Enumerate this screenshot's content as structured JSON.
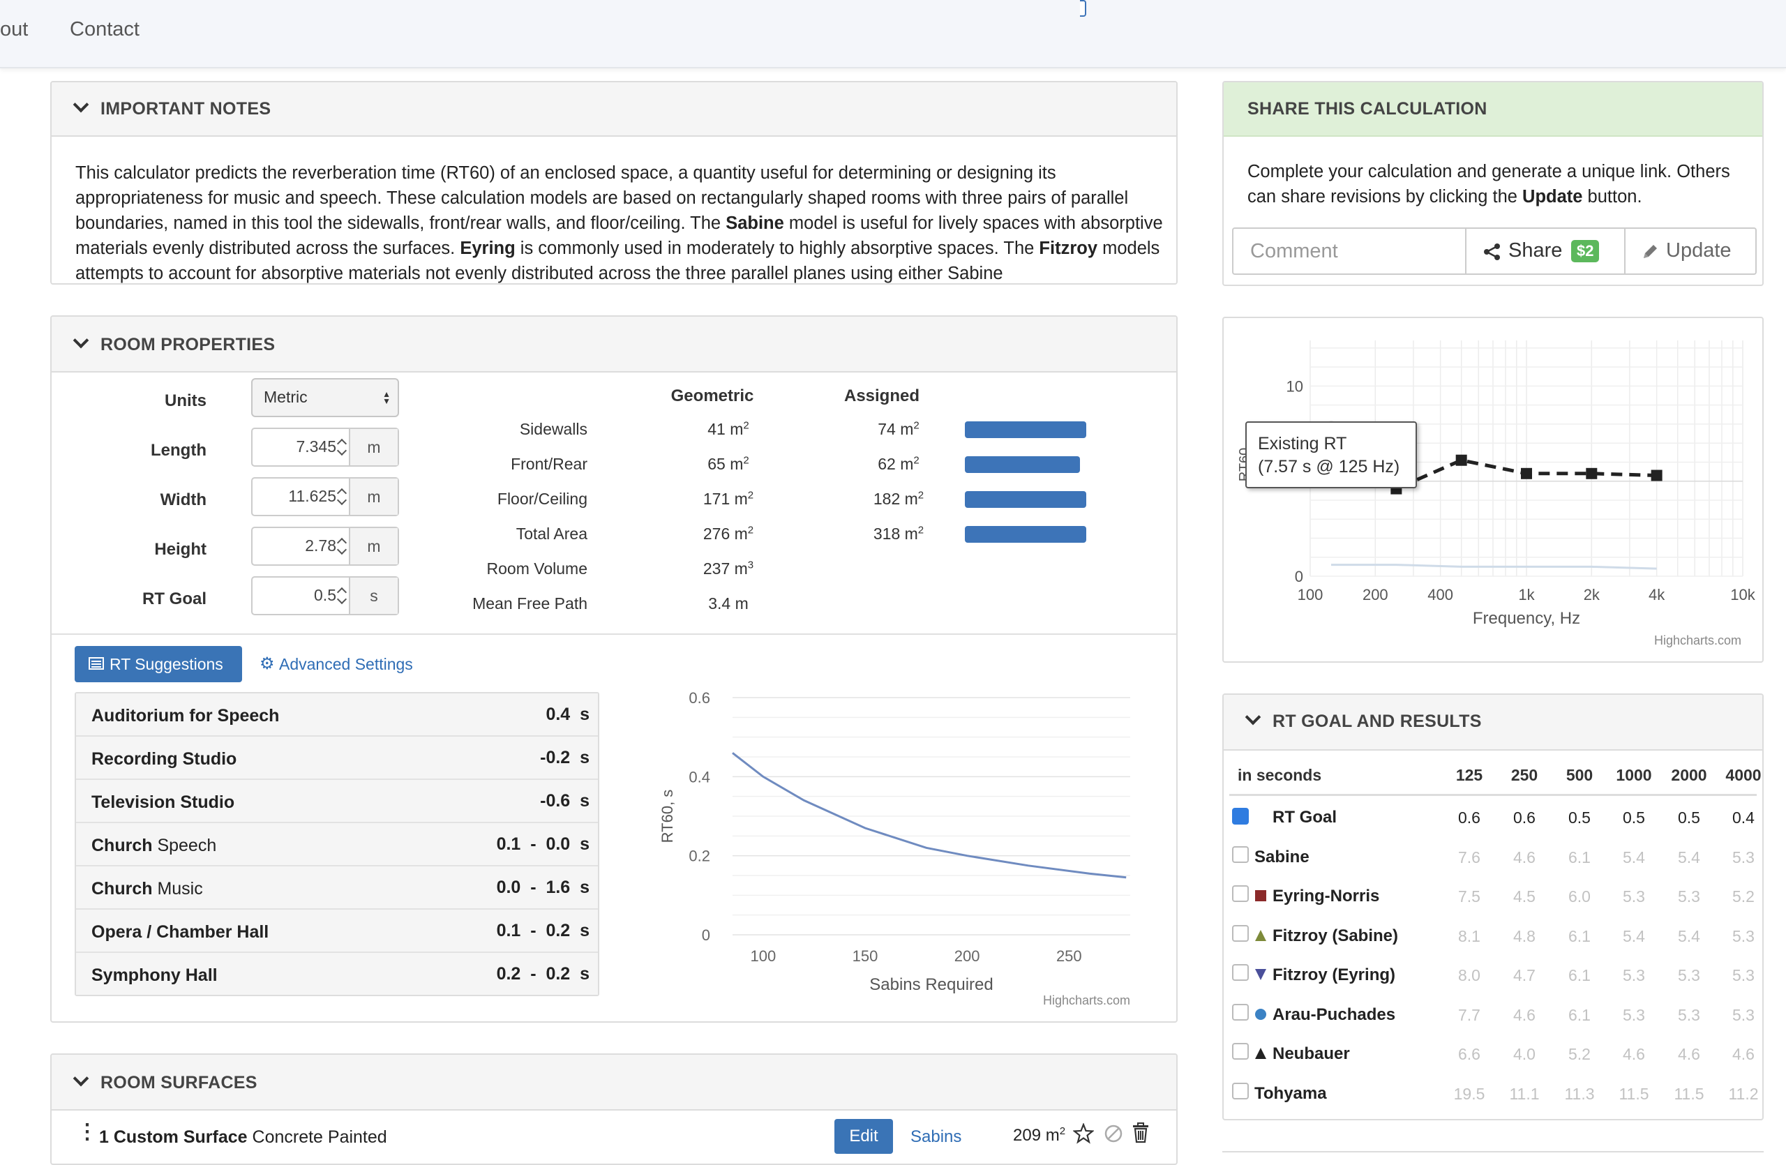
{
  "nav": {
    "about": "out",
    "contact": "Contact"
  },
  "notes": {
    "title": "IMPORTANT NOTES",
    "p1": "This calculator predicts the reverberation time (RT60) of an enclosed space, a quantity useful for determining or designing its appropriateness for music and speech. These calculation models are based on rectangularly shaped rooms with three pairs of parallel boundaries, named in this tool the sidewalls, front/rear walls, and floor/ceiling. The ",
    "b1": "Sabine",
    "p2": " model is useful for lively spaces with absorptive materials evenly distributed across the surfaces. ",
    "b2": "Eyring",
    "p3": " is commonly used in moderately to highly absorptive spaces. The ",
    "b3": "Fitzroy",
    "p4": " models attempts to account for absorptive materials not evenly distributed across the three parallel planes using either Sabine"
  },
  "share": {
    "title": "SHARE THIS CALCULATION",
    "text1": "Complete your calculation and generate a unique link. Others can share revisions by clicking the ",
    "text_bold": "Update",
    "text2": " button.",
    "comment_placeholder": "Comment",
    "share_label": "Share",
    "price": "$2",
    "update_label": "Update"
  },
  "room": {
    "title": "ROOM PROPERTIES",
    "units_label": "Units",
    "units_value": "Metric",
    "length_label": "Length",
    "length_value": "7.345",
    "length_unit": "m",
    "width_label": "Width",
    "width_value": "11.625",
    "width_unit": "m",
    "height_label": "Height",
    "height_value": "2.78",
    "height_unit": "m",
    "rtgoal_label": "RT Goal",
    "rtgoal_value": "0.5",
    "rtgoal_unit": "s",
    "col_geometric": "Geometric",
    "col_assigned": "Assigned",
    "rows": [
      {
        "label": "Sidewalls",
        "geo": "41 m",
        "geo_sup": "2",
        "asg": "74 m",
        "asg_sup": "2",
        "fill": 1.0
      },
      {
        "label": "Front/Rear",
        "geo": "65 m",
        "geo_sup": "2",
        "asg": "62 m",
        "asg_sup": "2",
        "fill": 0.95
      },
      {
        "label": "Floor/Ceiling",
        "geo": "171 m",
        "geo_sup": "2",
        "asg": "182 m",
        "asg_sup": "2",
        "fill": 1.0
      },
      {
        "label": "Total Area",
        "geo": "276 m",
        "geo_sup": "2",
        "asg": "318 m",
        "asg_sup": "2",
        "fill": 1.0
      },
      {
        "label": "Room Volume",
        "geo": "237 m",
        "geo_sup": "3"
      },
      {
        "label": "Mean Free Path",
        "geo": "3.4 m",
        "geo_sup": ""
      }
    ]
  },
  "tabs": {
    "suggestions": "RT Suggestions",
    "advanced": "Advanced Settings"
  },
  "suggestions": [
    {
      "name": "Auditorium for Speech",
      "sub": "",
      "value": "0.4  s"
    },
    {
      "name": "Recording Studio",
      "sub": "",
      "value": "-0.2  s"
    },
    {
      "name": "Television Studio",
      "sub": "",
      "value": "-0.6  s"
    },
    {
      "name": "Church",
      "sub": " Speech",
      "value": "0.1  -  0.0  s"
    },
    {
      "name": "Church",
      "sub": " Music",
      "value": "0.0  -  1.6  s"
    },
    {
      "name": "Opera / Chamber Hall",
      "sub": "",
      "value": "0.1  -  0.2  s"
    },
    {
      "name": "Symphony Hall",
      "sub": "",
      "value": "0.2  -  0.2  s"
    }
  ],
  "chart_data": [
    {
      "type": "line",
      "title": "",
      "xlabel": "Sabins Required",
      "ylabel": "RT60, s",
      "xlim": [
        85,
        280
      ],
      "ylim": [
        0,
        0.6
      ],
      "x_ticks": [
        "100",
        "150",
        "200",
        "250"
      ],
      "y_ticks": [
        "0",
        "0.2",
        "0.4",
        "0.6"
      ],
      "credit": "Highcharts.com",
      "series": [
        {
          "x": [
            85,
            100,
            120,
            150,
            180,
            200,
            230,
            260,
            278
          ],
          "y": [
            0.46,
            0.4,
            0.34,
            0.27,
            0.22,
            0.2,
            0.175,
            0.155,
            0.145
          ]
        }
      ]
    },
    {
      "type": "line",
      "xlabel": "Frequency, Hz",
      "ylabel": "RT60",
      "y_ticks": [
        "0",
        "10"
      ],
      "x_ticks": [
        "100",
        "200",
        "400",
        "1k",
        "2k",
        "4k",
        "10k"
      ],
      "credit": "Highcharts.com",
      "series": [
        {
          "x": [
            125,
            250,
            500,
            1000,
            2000,
            4000
          ],
          "y": [
            7.57,
            4.6,
            6.1,
            5.4,
            5.4,
            5.3
          ]
        },
        {
          "x": [
            125,
            250,
            500,
            1000,
            2000,
            4000
          ],
          "y": [
            0.6,
            0.6,
            0.5,
            0.5,
            0.5,
            0.4
          ]
        }
      ],
      "tooltip": {
        "title": "Existing RT",
        "text": "(7.57 s @ 125 Hz)"
      }
    }
  ],
  "results": {
    "title": "RT GOAL AND RESULTS",
    "unit_label": "in seconds",
    "freqs": [
      "125",
      "250",
      "500",
      "1000",
      "2000",
      "4000"
    ],
    "rows": [
      {
        "name": "RT Goal",
        "checked": true,
        "marker": "",
        "color": "",
        "values": [
          "0.6",
          "0.6",
          "0.5",
          "0.5",
          "0.5",
          "0.4"
        ]
      },
      {
        "name": "Sabine",
        "checked": false,
        "marker": "",
        "color": "",
        "values": [
          "7.6",
          "4.6",
          "6.1",
          "5.4",
          "5.4",
          "5.3"
        ]
      },
      {
        "name": "Eyring-Norris",
        "checked": false,
        "marker": "square",
        "color": "#8b2a2a",
        "values": [
          "7.5",
          "4.5",
          "6.0",
          "5.3",
          "5.3",
          "5.2"
        ]
      },
      {
        "name": "Fitzroy (Sabine)",
        "checked": false,
        "marker": "triangle-up",
        "color": "#7d8a3a",
        "values": [
          "8.1",
          "4.8",
          "6.1",
          "5.4",
          "5.4",
          "5.3"
        ]
      },
      {
        "name": "Fitzroy (Eyring)",
        "checked": false,
        "marker": "triangle-down",
        "color": "#4a4f9a",
        "values": [
          "8.0",
          "4.7",
          "6.1",
          "5.3",
          "5.3",
          "5.3"
        ]
      },
      {
        "name": "Arau-Puchades",
        "checked": false,
        "marker": "circle",
        "color": "#3b82c4",
        "values": [
          "7.7",
          "4.6",
          "6.1",
          "5.3",
          "5.3",
          "5.3"
        ]
      },
      {
        "name": "Neubauer",
        "checked": false,
        "marker": "triangle-up",
        "color": "#222222",
        "values": [
          "6.6",
          "4.0",
          "5.2",
          "4.6",
          "4.6",
          "4.6"
        ]
      },
      {
        "name": "Tohyama",
        "checked": false,
        "marker": "",
        "color": "",
        "values": [
          "19.5",
          "11.1",
          "11.3",
          "11.5",
          "11.5",
          "11.2"
        ]
      }
    ]
  },
  "surfaces": {
    "title": "ROOM SURFACES",
    "item_name": "1 Custom Surface",
    "item_material": " Concrete Painted",
    "edit_label": "Edit",
    "sabins_label": "Sabins",
    "area": "209 m",
    "area_sup": "2"
  },
  "colors": {
    "accent": "#3a74b6",
    "share_header": "#dff0d8",
    "bar": "#3d74b8"
  }
}
